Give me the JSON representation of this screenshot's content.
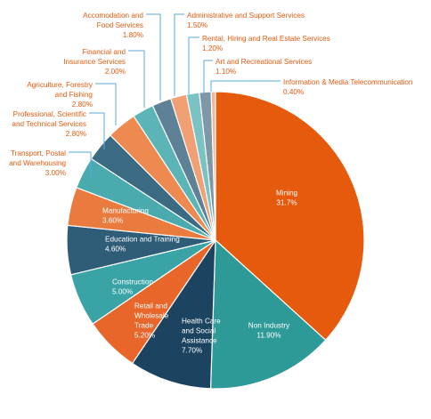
{
  "chart_data": {
    "type": "pie",
    "title": "",
    "start": "top, clockwise",
    "slices": [
      {
        "name": "Mining",
        "label": "Mining",
        "display_value": "31.7%",
        "value": 31.7,
        "color": "#E65A0E",
        "label_color": "#ffffff"
      },
      {
        "name": "Non Industry",
        "label": "Non Industry",
        "display_value": "11.90%",
        "value": 11.9,
        "color": "#2E9A98",
        "label_color": "#ffffff"
      },
      {
        "name": "Health Care and Social Assistance",
        "label": "Health Care\nand Social\nAssistance",
        "display_value": "7.70%",
        "value": 7.7,
        "color": "#1C4460",
        "label_color": "#ffffff"
      },
      {
        "name": "Retail and Wholesale Trade",
        "label": "Retail and\nWholesale\nTrade",
        "display_value": "5.20%",
        "value": 5.2,
        "color": "#E8662A",
        "label_color": "#ffffff"
      },
      {
        "name": "Construction",
        "label": "Construction",
        "display_value": "5.00%",
        "value": 5.0,
        "color": "#3AA3A6",
        "label_color": "#ffffff"
      },
      {
        "name": "Education and Training",
        "label": "Education and Training",
        "display_value": "4.60%",
        "value": 4.6,
        "color": "#2F5D78",
        "label_color": "#ffffff"
      },
      {
        "name": "Manufacturing",
        "label": "Manufacturing",
        "display_value": "3.60%",
        "value": 3.6,
        "color": "#EA7B3F",
        "label_color": "#ffffff"
      },
      {
        "name": "Transport, Postal and Warehousing",
        "label": "Transport, Postal\nand Warehousing",
        "display_value": "3.00%",
        "value": 3.0,
        "color": "#4AABAE",
        "label_color": "#E65A0E"
      },
      {
        "name": "Professional, Scientific and Technical Services",
        "label": "Professional, Scientific\nand Technical Services",
        "display_value": "2.80%",
        "value": 2.8,
        "color": "#3A6B83",
        "label_color": "#E65A0E"
      },
      {
        "name": "Agriculture, Forestry and Fishing",
        "label": "Agriculture, Forestry\nand Fishing",
        "display_value": "2.80%",
        "value": 2.8,
        "color": "#EE8A50",
        "label_color": "#E65A0E"
      },
      {
        "name": "Financial and Insurance Services",
        "label": "Financial and\nInsurance Services",
        "display_value": "2.00%",
        "value": 2.0,
        "color": "#5BB4B6",
        "label_color": "#E65A0E"
      },
      {
        "name": "Accomodation and Food Services",
        "label": "Accomodation and\nFood Services",
        "display_value": "1.80%",
        "value": 1.8,
        "color": "#5F8196",
        "label_color": "#E65A0E"
      },
      {
        "name": "Administrative and Support Services",
        "label": "Administrative and Support Services",
        "display_value": "1.50%",
        "value": 1.5,
        "color": "#F0A072",
        "label_color": "#E65A0E"
      },
      {
        "name": "Rental, Hiring and Real Estate Services",
        "label": "Rental, Hiring and Real Estate Services",
        "display_value": "1.20%",
        "value": 1.2,
        "color": "#7BC2C4",
        "label_color": "#E65A0E"
      },
      {
        "name": "Art and Recreational Services",
        "label": "Art and Recreational Services",
        "display_value": "1.10%",
        "value": 1.1,
        "color": "#7E98A8",
        "label_color": "#E65A0E"
      },
      {
        "name": "Information & Media Telecommunication",
        "label": "Information & Media Telecommunication",
        "display_value": "0.40%",
        "value": 0.4,
        "color": "#F5B898",
        "label_color": "#E65A0E"
      }
    ],
    "leader_line_color": "#5BA8D8"
  }
}
